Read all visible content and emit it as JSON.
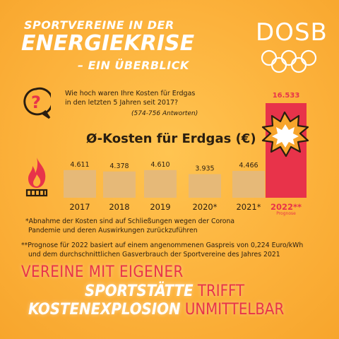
{
  "header": {
    "title_line1": "SPORTVEREINE IN DER",
    "title_line2": "ENERGIEKRISE",
    "title_line3": "– EIN ÜBERBLICK"
  },
  "logo": {
    "text": "DOSB",
    "icon": "olympic-rings-icon",
    "color": "#ffffff"
  },
  "question": {
    "icon": "question-mark-icon",
    "line1": "Wie hoch waren Ihre Kosten für Erdgas",
    "line2": "in den letzten 5 Jahren seit 2017?",
    "responses": "(574-756 Antworten)"
  },
  "chart_data": {
    "type": "bar",
    "title": "Ø-Kosten für Erdgas (€)",
    "categories": [
      "2017",
      "2018",
      "2019",
      "2020*",
      "2021*",
      "2022**"
    ],
    "values": [
      4611,
      4378,
      4610,
      3935,
      4466,
      16533
    ],
    "value_labels": [
      "4.611",
      "4.378",
      "4.610",
      "3.935",
      "4.466",
      "16.533"
    ],
    "forecast_label": "Prognose",
    "colors": {
      "bar": "#e6b978",
      "forecast_bar": "#e8334a",
      "forecast_text": "#e8334a",
      "text": "#2a1e10"
    },
    "icons": [
      "flame-icon",
      "explosion-icon"
    ]
  },
  "notes": {
    "note1_line1": "*Abnahme der Kosten sind auf Schließungen wegen der Corona",
    "note1_line2": "Pandemie und deren Auswirkungen zurückzuführen",
    "note2_line1": "**Prognose für 2022 basiert auf einem angenommenen Gaspreis von 0,224 Euro/kWh",
    "note2_line2": "und dem durchschnittlichen Gasverbrauch der Sportvereine des Jahres 2021"
  },
  "slogan": {
    "line1": "VEREINE MIT EIGENER",
    "line2_bold": "SPORTSTÄTTE",
    "line2_rest": " TRIFFT",
    "line3_bold": "KOSTENEXPLOSION",
    "line3_rest": " UNMITTELBAR"
  },
  "colors": {
    "accent_red": "#e8334a",
    "background": "#fcb23c",
    "white": "#ffffff"
  }
}
